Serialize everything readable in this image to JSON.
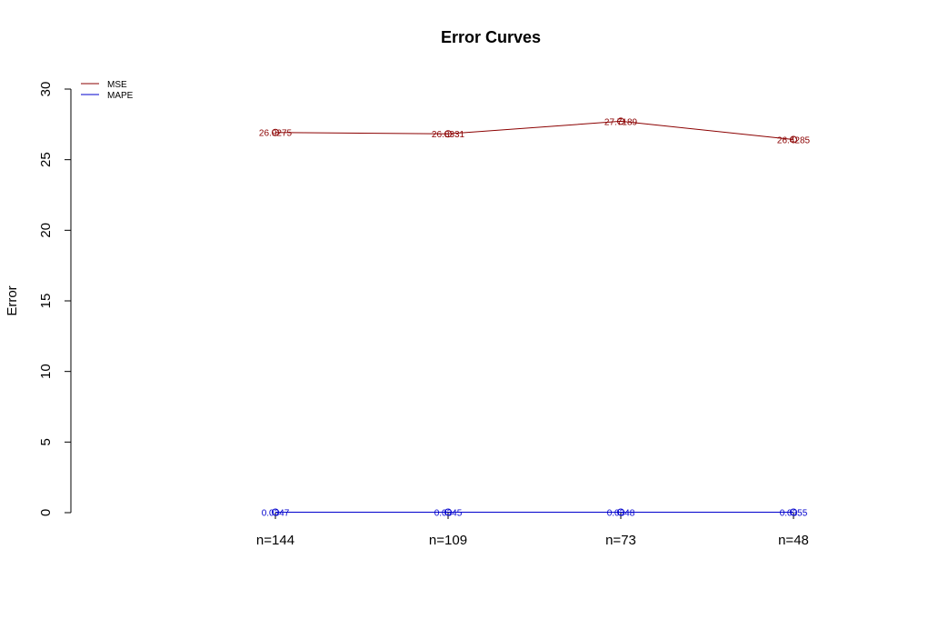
{
  "chart_data": {
    "type": "line",
    "title": "Error Curves",
    "xlabel": "",
    "ylabel": "Error",
    "categories": [
      "n=144",
      "n=109",
      "n=73",
      "n=48"
    ],
    "ylim": [
      0,
      30
    ],
    "yticks": [
      0,
      5,
      10,
      15,
      20,
      25,
      30
    ],
    "ytick_labels": [
      "0",
      "5",
      "10",
      "15",
      "20",
      "25",
      "30"
    ],
    "grid": false,
    "legend_position": "top-left",
    "series": [
      {
        "name": "MSE",
        "color": "#8b0000",
        "values": [
          26.9275,
          26.8331,
          27.7189,
          26.4285
        ],
        "labels": [
          "26.9275",
          "26.8331",
          "27.7189",
          "26.4285"
        ]
      },
      {
        "name": "MAPE",
        "color": "#0000cd",
        "values": [
          0.0347,
          0.0345,
          0.0348,
          0.0355
        ],
        "labels": [
          "0.0347",
          "0.0345",
          "0.0348",
          "0.0355"
        ]
      }
    ]
  }
}
